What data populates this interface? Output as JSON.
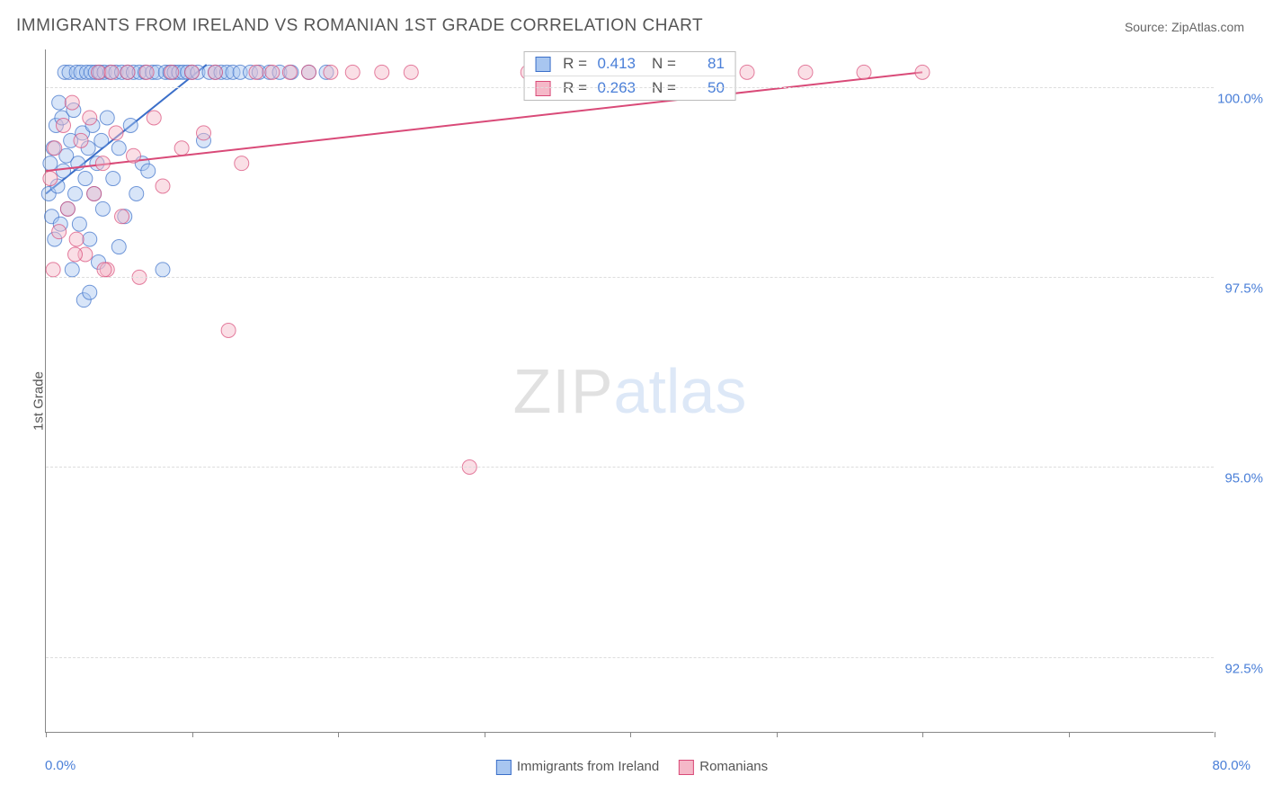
{
  "title": "IMMIGRANTS FROM IRELAND VS ROMANIAN 1ST GRADE CORRELATION CHART",
  "source_prefix": "Source: ",
  "source_name": "ZipAtlas.com",
  "ylabel": "1st Grade",
  "watermark_a": "ZIP",
  "watermark_b": "atlas",
  "chart": {
    "type": "scatter",
    "background_color": "#ffffff",
    "grid_color": "#dddddd",
    "axis_color": "#888888",
    "xlim": [
      0,
      80
    ],
    "ylim": [
      91.5,
      100.5
    ],
    "x_ticks_pct": [
      0,
      10,
      20,
      30,
      40,
      50,
      60,
      70,
      80
    ],
    "y_gridlines": [
      92.5,
      95.0,
      97.5,
      100.0
    ],
    "y_tick_labels": [
      "92.5%",
      "95.0%",
      "97.5%",
      "100.0%"
    ],
    "x_axis_left_label": "0.0%",
    "x_axis_right_label": "80.0%",
    "tick_label_color": "#4a7fd8",
    "marker_radius": 8,
    "marker_opacity": 0.45,
    "line_width": 2,
    "series": [
      {
        "id": "ireland",
        "label": "Immigrants from Ireland",
        "fill": "#a8c6f0",
        "stroke": "#3b6fc9",
        "R": "0.413",
        "N": "81",
        "trend": {
          "x1": 0,
          "y1": 98.6,
          "x2": 11,
          "y2": 100.3
        },
        "points": [
          [
            0.2,
            98.6
          ],
          [
            0.3,
            99.0
          ],
          [
            0.4,
            98.3
          ],
          [
            0.5,
            99.2
          ],
          [
            0.6,
            98.0
          ],
          [
            0.7,
            99.5
          ],
          [
            0.8,
            98.7
          ],
          [
            0.9,
            99.8
          ],
          [
            1.0,
            98.2
          ],
          [
            1.1,
            99.6
          ],
          [
            1.2,
            98.9
          ],
          [
            1.3,
            100.2
          ],
          [
            1.4,
            99.1
          ],
          [
            1.5,
            98.4
          ],
          [
            1.6,
            100.2
          ],
          [
            1.7,
            99.3
          ],
          [
            1.8,
            97.6
          ],
          [
            1.9,
            99.7
          ],
          [
            2.0,
            98.6
          ],
          [
            2.1,
            100.2
          ],
          [
            2.2,
            99.0
          ],
          [
            2.3,
            98.2
          ],
          [
            2.4,
            100.2
          ],
          [
            2.5,
            99.4
          ],
          [
            2.6,
            97.2
          ],
          [
            2.7,
            98.8
          ],
          [
            2.8,
            100.2
          ],
          [
            2.9,
            99.2
          ],
          [
            3.0,
            98.0
          ],
          [
            3.1,
            100.2
          ],
          [
            3.2,
            99.5
          ],
          [
            3.3,
            98.6
          ],
          [
            3.4,
            100.2
          ],
          [
            3.5,
            99.0
          ],
          [
            3.6,
            97.7
          ],
          [
            3.7,
            100.2
          ],
          [
            3.8,
            99.3
          ],
          [
            3.9,
            98.4
          ],
          [
            4.0,
            100.2
          ],
          [
            4.2,
            99.6
          ],
          [
            4.4,
            100.2
          ],
          [
            4.6,
            98.8
          ],
          [
            4.8,
            100.2
          ],
          [
            5.0,
            99.2
          ],
          [
            5.2,
            100.2
          ],
          [
            5.4,
            98.3
          ],
          [
            5.6,
            100.2
          ],
          [
            5.8,
            99.5
          ],
          [
            6.0,
            100.2
          ],
          [
            6.2,
            98.6
          ],
          [
            6.4,
            100.2
          ],
          [
            6.6,
            99.0
          ],
          [
            6.8,
            100.2
          ],
          [
            7.0,
            98.9
          ],
          [
            7.3,
            100.2
          ],
          [
            7.6,
            100.2
          ],
          [
            8.0,
            97.6
          ],
          [
            8.2,
            100.2
          ],
          [
            8.5,
            100.2
          ],
          [
            8.8,
            100.2
          ],
          [
            9.1,
            100.2
          ],
          [
            9.4,
            100.2
          ],
          [
            9.7,
            100.2
          ],
          [
            10.0,
            100.2
          ],
          [
            10.4,
            100.2
          ],
          [
            10.8,
            99.3
          ],
          [
            11.2,
            100.2
          ],
          [
            11.6,
            100.2
          ],
          [
            12.0,
            100.2
          ],
          [
            12.4,
            100.2
          ],
          [
            12.8,
            100.2
          ],
          [
            13.3,
            100.2
          ],
          [
            14.0,
            100.2
          ],
          [
            14.6,
            100.2
          ],
          [
            15.3,
            100.2
          ],
          [
            16.0,
            100.2
          ],
          [
            16.8,
            100.2
          ],
          [
            18.0,
            100.2
          ],
          [
            19.2,
            100.2
          ],
          [
            5.0,
            97.9
          ],
          [
            3.0,
            97.3
          ]
        ]
      },
      {
        "id": "romanians",
        "label": "Romanians",
        "fill": "#f5b8c8",
        "stroke": "#d94a78",
        "R": "0.263",
        "N": "50",
        "trend": {
          "x1": 0,
          "y1": 98.9,
          "x2": 60,
          "y2": 100.2
        },
        "points": [
          [
            0.3,
            98.8
          ],
          [
            0.6,
            99.2
          ],
          [
            0.9,
            98.1
          ],
          [
            1.2,
            99.5
          ],
          [
            1.5,
            98.4
          ],
          [
            1.8,
            99.8
          ],
          [
            2.1,
            98.0
          ],
          [
            2.4,
            99.3
          ],
          [
            2.7,
            97.8
          ],
          [
            3.0,
            99.6
          ],
          [
            3.3,
            98.6
          ],
          [
            3.6,
            100.2
          ],
          [
            3.9,
            99.0
          ],
          [
            4.2,
            97.6
          ],
          [
            4.5,
            100.2
          ],
          [
            4.8,
            99.4
          ],
          [
            5.2,
            98.3
          ],
          [
            5.6,
            100.2
          ],
          [
            6.0,
            99.1
          ],
          [
            6.4,
            97.5
          ],
          [
            6.9,
            100.2
          ],
          [
            7.4,
            99.6
          ],
          [
            8.0,
            98.7
          ],
          [
            8.6,
            100.2
          ],
          [
            9.3,
            99.2
          ],
          [
            10.0,
            100.2
          ],
          [
            10.8,
            99.4
          ],
          [
            11.6,
            100.2
          ],
          [
            12.5,
            96.8
          ],
          [
            13.4,
            99.0
          ],
          [
            14.4,
            100.2
          ],
          [
            15.5,
            100.2
          ],
          [
            16.7,
            100.2
          ],
          [
            18.0,
            100.2
          ],
          [
            19.5,
            100.2
          ],
          [
            21.0,
            100.2
          ],
          [
            23.0,
            100.2
          ],
          [
            25.0,
            100.2
          ],
          [
            29.0,
            95.0
          ],
          [
            33.0,
            100.2
          ],
          [
            37.0,
            100.2
          ],
          [
            41.0,
            100.2
          ],
          [
            45.0,
            100.2
          ],
          [
            48.0,
            100.2
          ],
          [
            52.0,
            100.2
          ],
          [
            56.0,
            100.2
          ],
          [
            60.0,
            100.2
          ],
          [
            4.0,
            97.6
          ],
          [
            2.0,
            97.8
          ],
          [
            0.5,
            97.6
          ]
        ]
      }
    ]
  },
  "stats_box": {
    "R_label": "R",
    "N_label": "N",
    "eq": "="
  }
}
